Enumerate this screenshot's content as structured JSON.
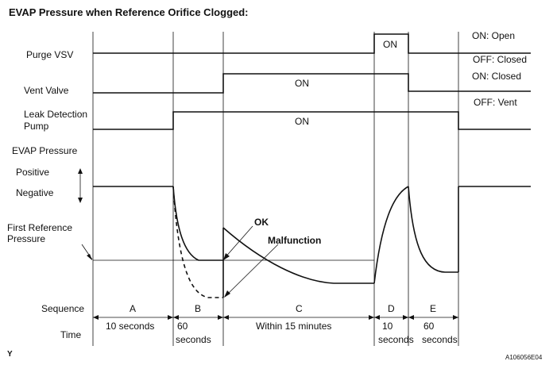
{
  "title": "EVAP Pressure when Reference Orifice Clogged:",
  "row_labels": {
    "purge_vsv": "Purge VSV",
    "vent_valve": "Vent Valve",
    "leak_pump_line1": "Leak Detection",
    "leak_pump_line2": "Pump",
    "evap_pressure": "EVAP Pressure",
    "positive": "Positive",
    "negative": "Negative",
    "first_ref_line1": "First Reference",
    "first_ref_line2": "Pressure",
    "sequence": "Sequence",
    "time": "Time"
  },
  "right_legends": {
    "purge_on": "ON: Open",
    "purge_off": "OFF: Closed",
    "vent_on": "ON: Closed",
    "vent_off": "OFF: Vent"
  },
  "signal_labels": {
    "purge_on": "ON",
    "vent_on": "ON",
    "pump_on": "ON"
  },
  "callouts": {
    "ok": "OK",
    "malfunction": "Malfunction"
  },
  "sequence": [
    "A",
    "B",
    "C",
    "D",
    "E"
  ],
  "time": {
    "a": "10 seconds",
    "b_line1": "60",
    "b_line2": "seconds",
    "c": "Within 15 minutes",
    "d_line1": "10",
    "d_line2": "seconds",
    "e_line1": "60",
    "e_line2": "seconds"
  },
  "corner_left": "Y",
  "figure_code": "A106056E04"
}
